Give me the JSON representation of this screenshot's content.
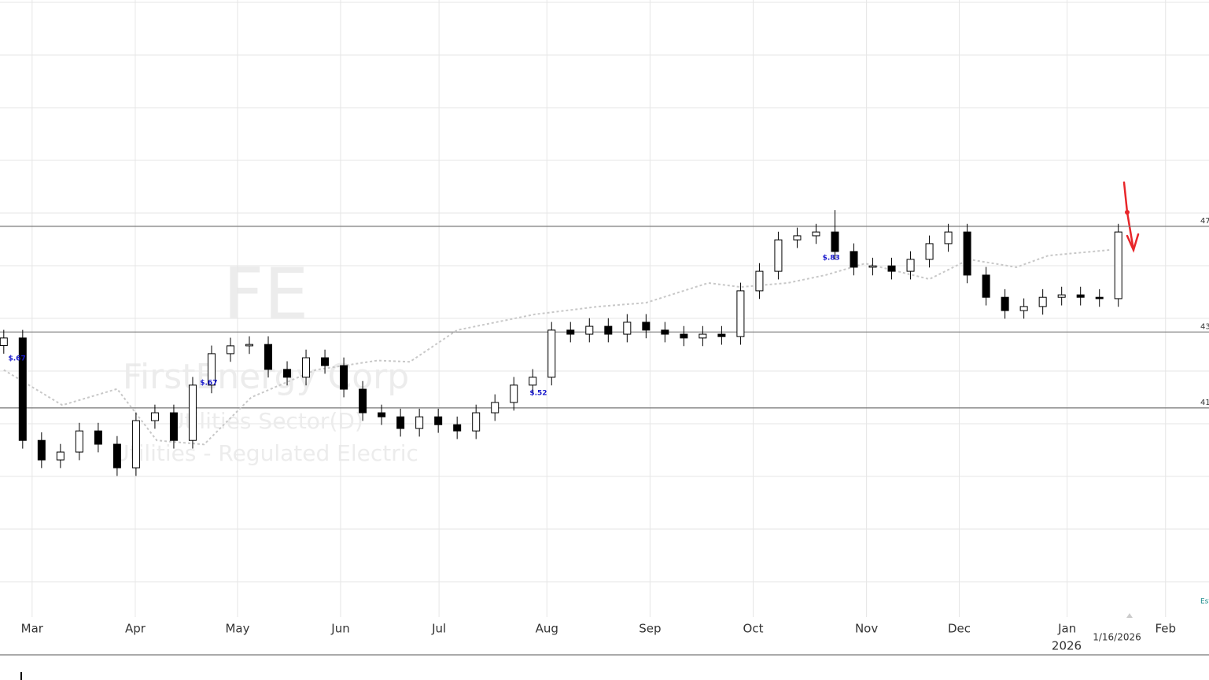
{
  "chart_data": {
    "type": "candlestick",
    "watermark": [
      "FE",
      "FirstEnergy Corp",
      "Utilities Sector(D)",
      "Utilities - Regulated Electric"
    ],
    "color_up": "#ffffff",
    "color_down": "#000000",
    "open": [
      42.9,
      43.18,
      39.4,
      38.68,
      38.97,
      39.75,
      39.26,
      38.39,
      40.13,
      40.42,
      39.4,
      41.44,
      42.6,
      42.89,
      42.94,
      42.02,
      41.73,
      42.45,
      42.16,
      41.29,
      40.42,
      40.27,
      39.84,
      40.27,
      39.98,
      39.75,
      40.42,
      40.8,
      41.44,
      41.73,
      43.47,
      43.32,
      43.61,
      43.32,
      43.76,
      43.47,
      43.32,
      43.18,
      43.32,
      43.23,
      44.92,
      45.64,
      46.8,
      46.95,
      47.09,
      46.37,
      45.79,
      45.84,
      45.64,
      46.08,
      46.66,
      47.09,
      45.5,
      44.68,
      44.19,
      44.34,
      44.68,
      44.77,
      44.68,
      44.63
    ],
    "high": [
      43.48,
      43.48,
      39.7,
      39.27,
      40.05,
      40.05,
      39.56,
      40.43,
      40.72,
      40.72,
      41.74,
      42.9,
      43.19,
      43.24,
      43.24,
      42.32,
      42.75,
      42.75,
      42.46,
      41.59,
      40.72,
      40.57,
      40.57,
      40.57,
      40.28,
      40.72,
      41.1,
      41.74,
      42.03,
      43.77,
      43.77,
      43.91,
      43.91,
      44.06,
      44.06,
      43.77,
      43.62,
      43.62,
      43.62,
      45.22,
      45.94,
      47.1,
      47.25,
      47.39,
      47.9,
      46.67,
      46.14,
      46.14,
      46.38,
      46.96,
      47.39,
      47.39,
      45.8,
      44.98,
      44.64,
      44.98,
      45.07,
      45.07,
      44.98,
      47.39
    ],
    "low": [
      42.6,
      39.1,
      38.38,
      38.38,
      38.67,
      38.96,
      38.09,
      38.09,
      39.83,
      39.1,
      39.1,
      41.14,
      42.3,
      42.59,
      41.72,
      41.43,
      41.43,
      41.86,
      40.99,
      40.12,
      39.97,
      39.54,
      39.54,
      39.68,
      39.45,
      39.45,
      40.12,
      40.5,
      41.14,
      41.43,
      43.02,
      43.02,
      43.02,
      43.02,
      43.17,
      43.02,
      42.88,
      42.88,
      42.93,
      42.93,
      44.62,
      45.34,
      46.5,
      46.65,
      46.07,
      45.49,
      45.49,
      45.34,
      45.34,
      45.78,
      46.36,
      45.2,
      44.38,
      43.89,
      43.89,
      44.04,
      44.38,
      44.38,
      44.33,
      44.33
    ],
    "close": [
      43.18,
      39.4,
      38.68,
      38.97,
      39.75,
      39.26,
      38.39,
      40.13,
      40.42,
      39.4,
      41.44,
      42.6,
      42.89,
      42.94,
      42.02,
      41.73,
      42.45,
      42.16,
      41.29,
      40.42,
      40.27,
      39.84,
      40.27,
      39.98,
      39.75,
      40.42,
      40.8,
      41.44,
      41.73,
      43.47,
      43.32,
      43.61,
      43.32,
      43.76,
      43.47,
      43.32,
      43.18,
      43.32,
      43.23,
      44.92,
      45.64,
      46.8,
      46.95,
      47.09,
      46.37,
      45.79,
      45.84,
      45.64,
      46.08,
      46.66,
      47.09,
      45.5,
      44.68,
      44.19,
      44.34,
      44.68,
      44.77,
      44.68,
      44.63,
      47.09
    ],
    "overlay": {
      "color": "#c8c8c8",
      "x": [
        0,
        3.1,
        6.0,
        8.1,
        10.6,
        13.1,
        16.5,
        19.8,
        21.5,
        24.0,
        28.1,
        31.5,
        34.0,
        37.3,
        39.0,
        41.5,
        43.5,
        45.6,
        49.0,
        51.1,
        53.6,
        55.3,
        58.6
      ],
      "values": [
        42.0,
        40.7,
        41.3,
        39.4,
        39.25,
        40.99,
        42.0,
        42.35,
        42.3,
        43.47,
        44.05,
        44.34,
        44.48,
        45.21,
        45.06,
        45.21,
        45.5,
        45.93,
        45.35,
        46.08,
        45.79,
        46.22,
        46.43
      ]
    },
    "dividends": [
      {
        "x": 0.7,
        "y": 42.42,
        "value": 0.67,
        "label": "$.67"
      },
      {
        "x": 10.85,
        "y": 41.52,
        "value": 0.67,
        "label": "$.67"
      },
      {
        "x": 28.3,
        "y": 41.15,
        "value": 0.52,
        "label": "$.52"
      },
      {
        "x": 43.8,
        "y": 46.13,
        "value": 0.83,
        "label": "$.83"
      }
    ],
    "reference_lines": [
      {
        "value": 47.3,
        "label": "47"
      },
      {
        "value": 43.4,
        "label": "43"
      },
      {
        "value": 40.6,
        "label": "41"
      }
    ],
    "xlim": [
      -0.2,
      63.8
    ],
    "ylim": [
      32.88,
      55.65
    ],
    "xticks": [
      {
        "value": 1.5,
        "label": "Mar"
      },
      {
        "value": 6.96,
        "label": "Apr"
      },
      {
        "value": 12.375,
        "label": "May"
      },
      {
        "value": 17.83,
        "label": "Jun"
      },
      {
        "value": 23.04,
        "label": "Jul"
      },
      {
        "value": 28.75,
        "label": "Aug"
      },
      {
        "value": 34.21,
        "label": "Sep"
      },
      {
        "value": 39.67,
        "label": "Oct"
      },
      {
        "value": 45.67,
        "label": "Nov"
      },
      {
        "value": 50.58,
        "label": "Dec"
      },
      {
        "value": 56.29,
        "label": "Jan"
      },
      {
        "value": 61.5,
        "label": "Feb"
      }
    ],
    "year_label": "2026",
    "current_date": "1/16/2026",
    "corner_label": "Est",
    "grid": true
  }
}
